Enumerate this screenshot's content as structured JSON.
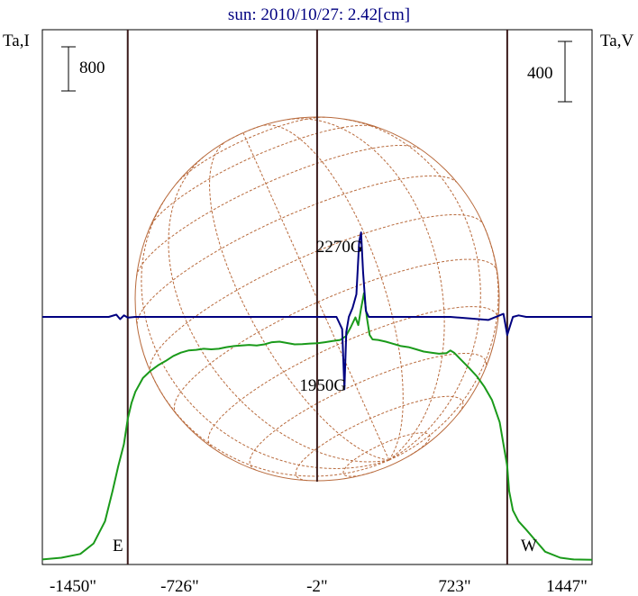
{
  "chart_data": {
    "type": "line",
    "title": "sun: 2010/10/27: 2.42[cm]",
    "ylabel_left": "Ta,I",
    "ylabel_right": "Ta,V",
    "scale_bar_left": "800",
    "scale_bar_right": "400",
    "xlim": [
      -1450,
      1447
    ],
    "x_ticks": [
      {
        "value": -1450,
        "label": "-1450\""
      },
      {
        "value": -726,
        "label": "-726\""
      },
      {
        "value": -2,
        "label": "-2\""
      },
      {
        "value": 723,
        "label": "723\""
      },
      {
        "value": 1447,
        "label": "1447\""
      }
    ],
    "limb_markers": [
      {
        "value": -1000,
        "label": "E"
      },
      {
        "value": 1000,
        "label": "W"
      }
    ],
    "center_marker": -2,
    "annotations": [
      {
        "label": "2270G",
        "x": 230,
        "kind": "peak"
      },
      {
        "label": "1950G",
        "x": 142,
        "kind": "dip"
      }
    ],
    "colors": {
      "intensity": "#1a9a1a",
      "polarization": "#000080",
      "solar_disk": "#b86a3c",
      "grid_lines": "#3a1a1a",
      "title": "#000080"
    },
    "series": [
      {
        "key": "intensity",
        "x": [
          -1450,
          -1350,
          -1250,
          -1180,
          -1120,
          -1080,
          -1050,
          -1020,
          -1000,
          -980,
          -960,
          -920,
          -880,
          -840,
          -800,
          -760,
          -720,
          -680,
          -640,
          -600,
          -560,
          -520,
          -480,
          -440,
          -400,
          -360,
          -320,
          -280,
          -240,
          -200,
          -160,
          -120,
          -80,
          -40,
          0,
          40,
          80,
          120,
          150,
          175,
          200,
          215,
          230,
          245,
          260,
          275,
          290,
          320,
          360,
          400,
          440,
          480,
          520,
          560,
          600,
          640,
          680,
          700,
          720,
          760,
          800,
          840,
          880,
          920,
          960,
          1000,
          1010,
          1030,
          1060,
          1100,
          1150,
          1200,
          1280,
          1350,
          1447
        ],
        "y": [
          10,
          40,
          110,
          300,
          700,
          1250,
          1700,
          2100,
          2560,
          2850,
          3050,
          3300,
          3430,
          3530,
          3610,
          3700,
          3760,
          3800,
          3810,
          3830,
          3820,
          3830,
          3860,
          3880,
          3890,
          3900,
          3890,
          3910,
          3950,
          3960,
          3935,
          3910,
          3915,
          3925,
          3930,
          3950,
          3970,
          3990,
          4060,
          4220,
          4400,
          4260,
          4560,
          4840,
          4400,
          4080,
          4000,
          3990,
          3960,
          3920,
          3880,
          3860,
          3820,
          3780,
          3760,
          3740,
          3750,
          3800,
          3760,
          3620,
          3480,
          3330,
          3140,
          2900,
          2500,
          1700,
          1250,
          900,
          700,
          550,
          350,
          150,
          40,
          10,
          5
        ]
      },
      {
        "key": "polarization",
        "x": [
          -1450,
          -1100,
          -1060,
          -1040,
          -1020,
          -1000,
          -960,
          -900,
          -700,
          -500,
          -300,
          -100,
          50,
          100,
          130,
          142,
          152,
          165,
          185,
          205,
          220,
          230,
          240,
          255,
          270,
          320,
          500,
          700,
          900,
          980,
          1000,
          1015,
          1030,
          1060,
          1100,
          1447
        ],
        "y": [
          0,
          0,
          15,
          -15,
          10,
          -5,
          0,
          0,
          0,
          0,
          0,
          0,
          0,
          0,
          -80,
          -480,
          -100,
          0,
          60,
          150,
          500,
          560,
          300,
          40,
          0,
          0,
          0,
          0,
          -20,
          20,
          -120,
          -60,
          0,
          10,
          0,
          0
        ]
      }
    ]
  }
}
